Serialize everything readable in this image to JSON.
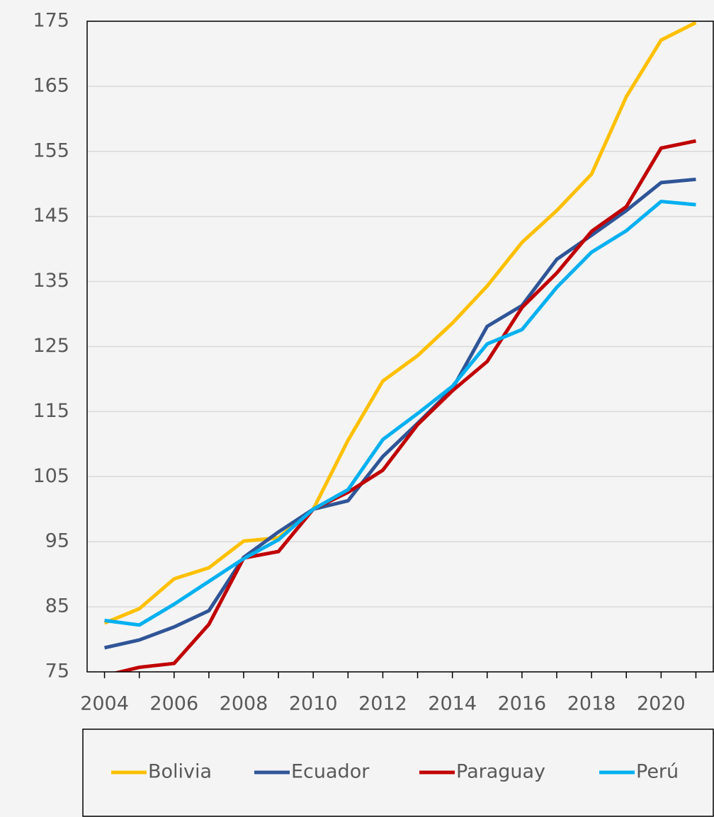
{
  "chart_data": {
    "type": "line",
    "categories": [
      "2004",
      null,
      "2006",
      null,
      "2008",
      null,
      "2010",
      null,
      "2012",
      null,
      "2014",
      null,
      "2016",
      null,
      "2018",
      null,
      "2020",
      null
    ],
    "series": [
      {
        "name": "Bolivia",
        "color": "#ffc000",
        "values": [
          82.5,
          84.7,
          89.3,
          91.0,
          95.1,
          95.6,
          100,
          110.6,
          119.7,
          123.6,
          128.6,
          134.3,
          141.0,
          145.9,
          151.5,
          163.4,
          172.1,
          174.8
        ]
      },
      {
        "name": "Ecuador",
        "color": "#2f5597",
        "values": [
          78.7,
          79.9,
          81.9,
          84.4,
          92.6,
          96.5,
          100,
          101.3,
          108.1,
          113.2,
          118.5,
          128.1,
          131.3,
          138.4,
          142.1,
          145.9,
          150.2,
          150.7
        ]
      },
      {
        "name": "Paraguay",
        "color": "#c00000",
        "values": [
          74.4,
          75.7,
          76.3,
          82.3,
          92.5,
          93.5,
          100,
          102.6,
          106.0,
          113.0,
          118.2,
          122.7,
          131.0,
          136.3,
          142.7,
          146.5,
          155.5,
          156.6
        ]
      },
      {
        "name": "Perú",
        "color": "#00b0f0",
        "values": [
          82.9,
          82.2,
          85.4,
          88.9,
          92.4,
          95.3,
          100,
          103.0,
          110.7,
          114.7,
          118.9,
          125.4,
          127.6,
          134.1,
          139.5,
          142.8,
          147.3,
          146.8
        ]
      }
    ],
    "ylim": [
      75,
      175
    ],
    "yticks": [
      75,
      85,
      95,
      105,
      115,
      125,
      135,
      145,
      155,
      165,
      175
    ],
    "grid": true
  }
}
